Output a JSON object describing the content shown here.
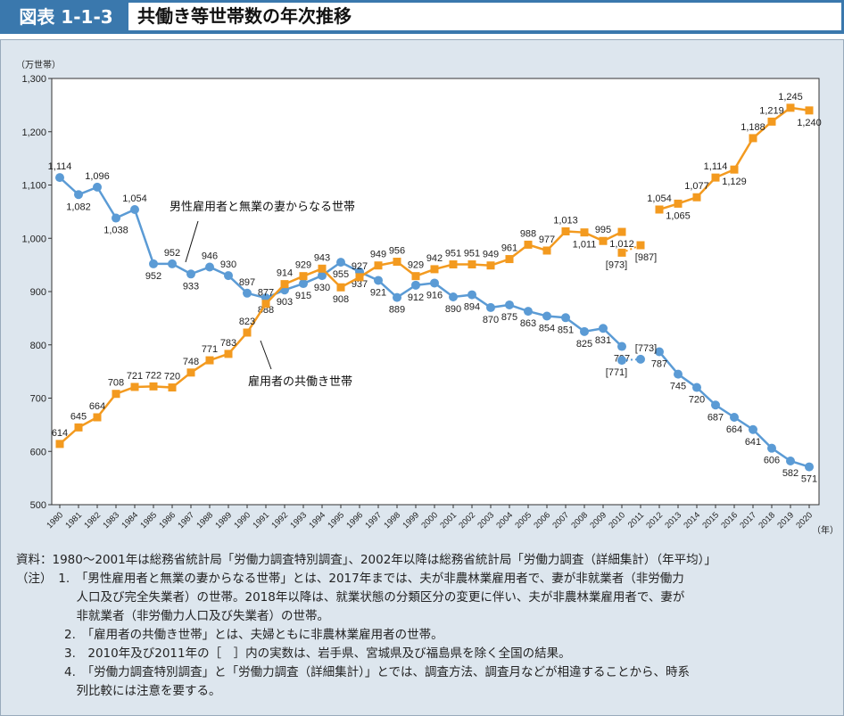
{
  "header": {
    "figure_number": "図表 1-1-3",
    "title": "共働き等世帯数の年次推移"
  },
  "chart_data": {
    "type": "line",
    "ylabel": "（万世帯）",
    "xlabel": "（年）",
    "ylim": [
      500,
      1300
    ],
    "yticks": [
      "500",
      "600",
      "700",
      "800",
      "900",
      "1,000",
      "1,100",
      "1,200",
      "1,300"
    ],
    "x": [
      1980,
      1981,
      1982,
      1983,
      1984,
      1985,
      1986,
      1987,
      1988,
      1989,
      1990,
      1991,
      1992,
      1993,
      1994,
      1995,
      1996,
      1997,
      1998,
      1999,
      2000,
      2001,
      2002,
      2003,
      2004,
      2005,
      2006,
      2007,
      2008,
      2009,
      2010,
      2011,
      2012,
      2013,
      2014,
      2015,
      2016,
      2017,
      2018,
      2019,
      2020
    ],
    "series": [
      {
        "name": "男性雇用者と無業の妻からなる世帯",
        "color": "#5b9bd5",
        "values": [
          1114,
          1082,
          1096,
          1038,
          1054,
          952,
          952,
          933,
          946,
          930,
          897,
          888,
          903,
          915,
          930,
          955,
          937,
          921,
          889,
          912,
          916,
          890,
          894,
          870,
          875,
          863,
          854,
          851,
          825,
          831,
          797,
          null,
          787,
          745,
          720,
          687,
          664,
          641,
          606,
          582,
          571
        ],
        "bracketed": [
          {
            "x": 2010,
            "y": 771
          },
          {
            "x": 2011,
            "y": 773
          }
        ]
      },
      {
        "name": "雇用者の共働き世帯",
        "color": "#f39a1f",
        "values": [
          614,
          645,
          664,
          708,
          721,
          722,
          720,
          748,
          771,
          783,
          823,
          877,
          914,
          929,
          943,
          908,
          927,
          949,
          956,
          929,
          942,
          951,
          951,
          949,
          961,
          988,
          977,
          1013,
          1011,
          995,
          1012,
          null,
          1054,
          1065,
          1077,
          1114,
          1129,
          1188,
          1219,
          1245,
          1240
        ],
        "bracketed": [
          {
            "x": 2010,
            "y": 973
          },
          {
            "x": 2011,
            "y": 987
          }
        ]
      }
    ]
  },
  "notes": [
    "資料：1980～2001年は総務省統計局「労働力調査特別調査」、2002年以降は総務省統計局「労働力調査（詳細集計）（年平均）」",
    "（注）　1.　「男性雇用者と無業の妻からなる世帯」とは、2017年までは、夫が非農林業雇用者で、妻が非就業者（非労働力",
    "　　　　　人口及び完全失業者）の世帯。2018年以降は、就業状態の分類区分の変更に伴い、夫が非農林業雇用者で、妻が",
    "　　　　　非就業者（非労働力人口及び失業者）の世帯。",
    "　　　　2.　「雇用者の共働き世帯」とは、夫婦ともに非農林業雇用者の世帯。",
    "　　　　3.　2010年及び2011年の［　］内の実数は、岩手県、宮城県及び福島県を除く全国の結果。",
    "　　　　4.　「労働力調査特別調査」と「労働力調査（詳細集計）」とでは、調査方法、調査月などが相違することから、時系",
    "　　　　　列比較には注意を要する。"
  ]
}
